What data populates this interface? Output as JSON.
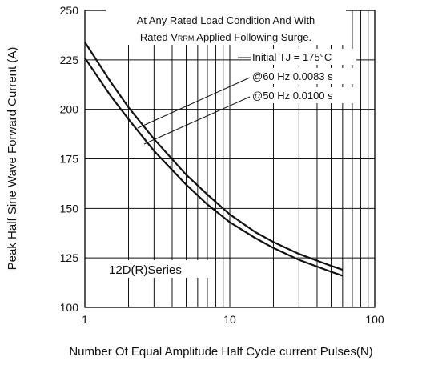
{
  "chart_data": {
    "type": "line",
    "title": "",
    "xlabel": "Number Of Equal Amplitude Half Cycle current Pulses(N)",
    "ylabel": "Peak Half Sine Wave Forward Current (A)",
    "x_scale": "log",
    "xlim": [
      1,
      100
    ],
    "ylim": [
      100,
      250
    ],
    "x_ticks": [
      1,
      10,
      100
    ],
    "y_ticks": [
      100,
      125,
      150,
      175,
      200,
      225,
      250
    ],
    "grid": true,
    "series": [
      {
        "name": "@60 Hz 0.0083 s",
        "x": [
          1,
          1.5,
          2,
          3,
          5,
          7,
          10,
          15,
          20,
          30,
          50,
          60
        ],
        "y": [
          234,
          214,
          201,
          185,
          167,
          157,
          147,
          138,
          133,
          127,
          121,
          119
        ]
      },
      {
        "name": "@50 Hz 0.0100 s",
        "x": [
          1,
          1.5,
          2,
          3,
          5,
          7,
          10,
          15,
          20,
          30,
          50,
          60
        ],
        "y": [
          226,
          207,
          195,
          179,
          162,
          152,
          143,
          135,
          130,
          124,
          118,
          116
        ]
      }
    ],
    "annotations": {
      "condition_line1": "At Any Rated Load Condition And With",
      "condition_line2_prefix": "Rated V",
      "condition_line2_sub": "RRM",
      "condition_line2_suffix": " Applied Following Surge.",
      "initial_tj": "Initial TJ = 175°C",
      "series_box": "12D(R)Series"
    },
    "colors": {
      "lines": "#111111",
      "grid": "#111111",
      "background": "#ffffff"
    }
  }
}
